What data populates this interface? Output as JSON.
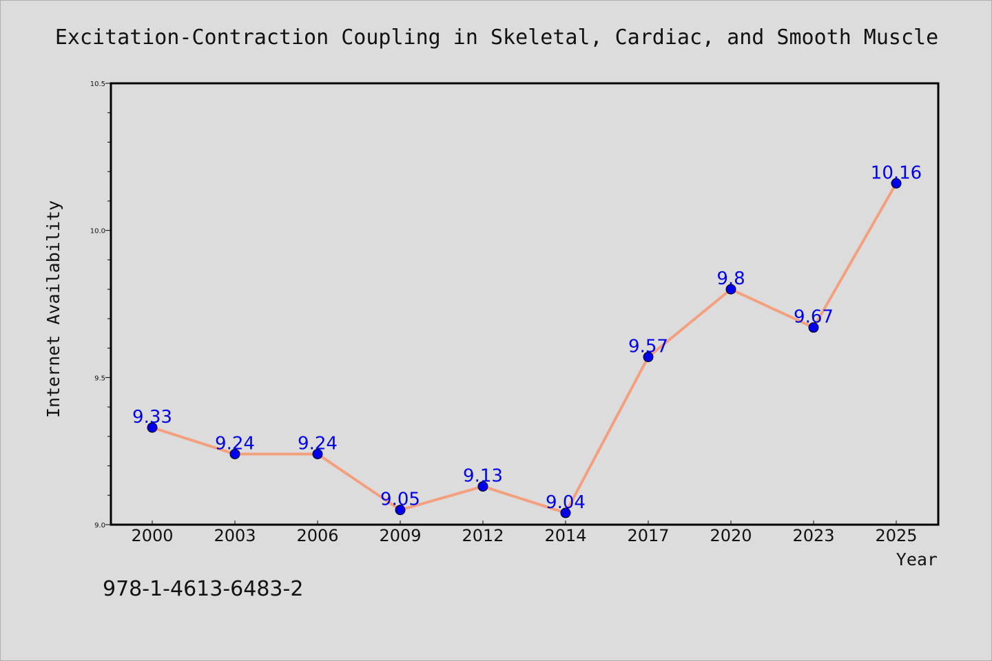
{
  "chart_data": {
    "type": "line",
    "title": "Excitation-Contraction Coupling in Skeletal, Cardiac, and Smooth Muscle",
    "xlabel": "Year",
    "ylabel": "Internet Availability",
    "categories": [
      "2000",
      "2003",
      "2006",
      "2009",
      "2012",
      "2014",
      "2017",
      "2020",
      "2023",
      "2025"
    ],
    "series": [
      {
        "values": [
          9.33,
          9.24,
          9.24,
          9.05,
          9.13,
          9.04,
          9.57,
          9.8,
          9.67,
          10.16
        ],
        "labels": [
          "9.33",
          "9.24",
          "9.24",
          "9.05",
          "9.13",
          "9.04",
          "9.57",
          "9.8",
          "9.67",
          "10.16"
        ]
      }
    ],
    "ylim": [
      9.0,
      10.5
    ],
    "y_ticks": [
      "9.0",
      "9.5",
      "10.0",
      "10.5"
    ],
    "grid": false,
    "colors": {
      "line": "#f4a07f",
      "marker": "#0000ee",
      "data_label": "#0000ee"
    }
  },
  "footer": {
    "isbn": "978-1-4613-6483-2"
  }
}
